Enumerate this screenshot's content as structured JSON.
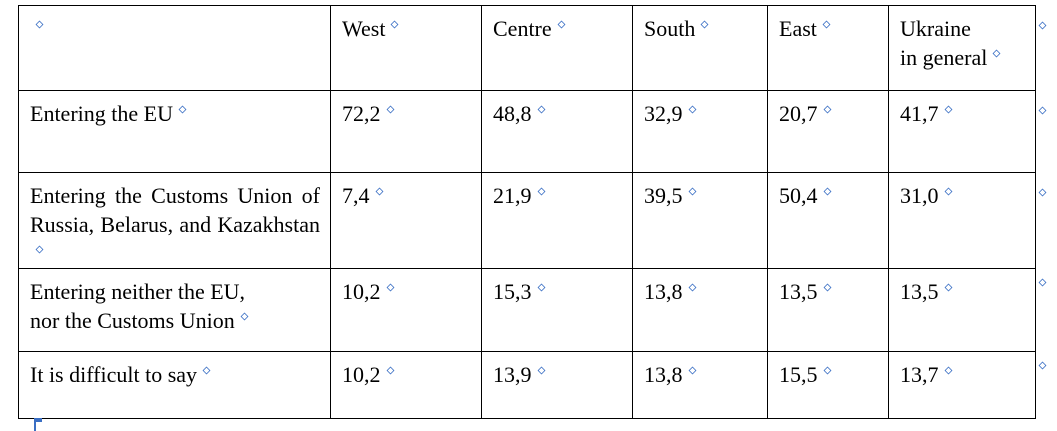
{
  "table": {
    "columns": [
      "West",
      "Centre",
      "South",
      "East",
      "Ukraine\nin general"
    ],
    "rows": [
      {
        "label": "Entering the EU",
        "values": [
          "72,2",
          "48,8",
          "32,9",
          "20,7",
          "41,7"
        ]
      },
      {
        "label": "Entering the Customs Union of Russia, Belarus, and Kazakhstan",
        "values": [
          "7,4",
          "21,9",
          "39,5",
          "50,4",
          "31,0"
        ]
      },
      {
        "label": "Entering neither the EU,\nnor the Customs Union",
        "values": [
          "10,2",
          "15,3",
          "13,8",
          "13,5",
          "13,5"
        ]
      },
      {
        "label": "It is difficult to say",
        "values": [
          "10,2",
          "13,9",
          "13,8",
          "15,5",
          "13,7"
        ]
      }
    ]
  }
}
